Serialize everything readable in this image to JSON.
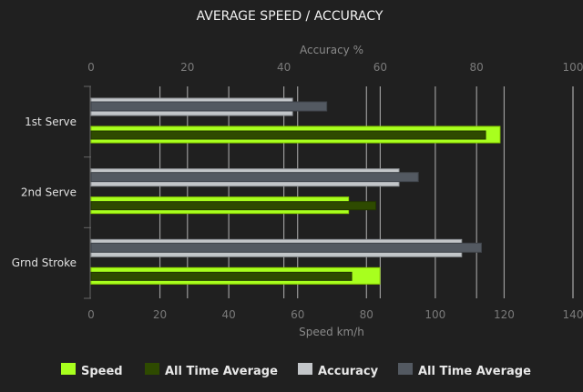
{
  "chart_data": {
    "type": "bar",
    "orientation": "horizontal",
    "title": "AVERAGE SPEED / ACCURACY",
    "categories": [
      "1st Serve",
      "2nd Serve",
      "Grnd Stroke"
    ],
    "top_axis": {
      "label": "Accuracy %",
      "range": [
        0,
        100
      ],
      "ticks": [
        "0",
        "20",
        "40",
        "60",
        "80",
        "100"
      ]
    },
    "bottom_axis": {
      "label": "Speed km/h",
      "range": [
        0,
        140
      ],
      "ticks": [
        "0",
        "20",
        "40",
        "60",
        "80",
        "100",
        "120",
        "140"
      ]
    },
    "grid": true,
    "legend_position": "bottom",
    "series": [
      {
        "name": "Speed",
        "axis": "bottom",
        "color": "#a8ff1e",
        "values": [
          118.8,
          74.8,
          83.9
        ]
      },
      {
        "name": "All Time Average",
        "axis": "bottom",
        "color": "#2e4a00",
        "values": [
          114.6,
          82.7,
          75.7
        ]
      },
      {
        "name": "Accuracy",
        "axis": "top",
        "color": "#c3c6c9",
        "values": [
          41.8,
          63.9,
          76.9
        ]
      },
      {
        "name": "All Time Average",
        "axis": "top",
        "color": "#535961",
        "values": [
          48.9,
          67.9,
          81.0
        ]
      }
    ]
  }
}
